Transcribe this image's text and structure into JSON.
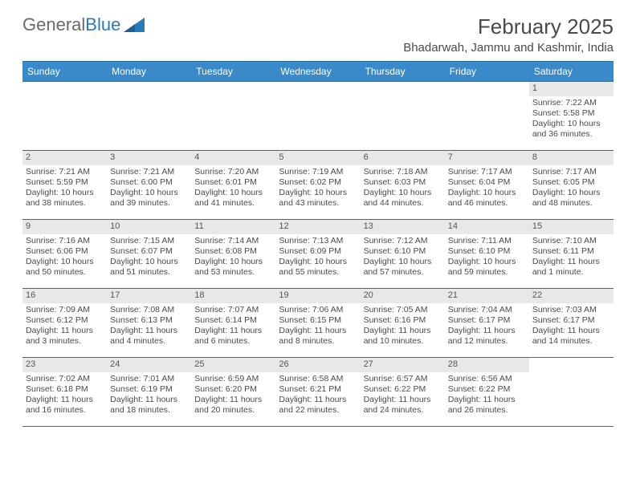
{
  "branding": {
    "logo_text_1": "General",
    "logo_text_2": "Blue",
    "logo_color_gray": "#6a6a6a",
    "logo_color_blue": "#2a7ab8"
  },
  "header": {
    "month_title": "February 2025",
    "location": "Bhadarwah, Jammu and Kashmir, India"
  },
  "colors": {
    "header_row_bg": "#3a89c9",
    "header_row_text": "#ffffff",
    "cell_border": "#2a6ea3",
    "daynum_bg": "#e8e8e8",
    "body_text": "#4a4a4a",
    "page_bg": "#ffffff"
  },
  "typography": {
    "title_fontsize": 26,
    "location_fontsize": 15,
    "dayheader_fontsize": 12,
    "cell_fontsize": 10.5
  },
  "calendar": {
    "day_names": [
      "Sunday",
      "Monday",
      "Tuesday",
      "Wednesday",
      "Thursday",
      "Friday",
      "Saturday"
    ],
    "first_weekday_index": 6,
    "days": [
      {
        "n": "1",
        "sunrise": "Sunrise: 7:22 AM",
        "sunset": "Sunset: 5:58 PM",
        "daylight": "Daylight: 10 hours and 36 minutes."
      },
      {
        "n": "2",
        "sunrise": "Sunrise: 7:21 AM",
        "sunset": "Sunset: 5:59 PM",
        "daylight": "Daylight: 10 hours and 38 minutes."
      },
      {
        "n": "3",
        "sunrise": "Sunrise: 7:21 AM",
        "sunset": "Sunset: 6:00 PM",
        "daylight": "Daylight: 10 hours and 39 minutes."
      },
      {
        "n": "4",
        "sunrise": "Sunrise: 7:20 AM",
        "sunset": "Sunset: 6:01 PM",
        "daylight": "Daylight: 10 hours and 41 minutes."
      },
      {
        "n": "5",
        "sunrise": "Sunrise: 7:19 AM",
        "sunset": "Sunset: 6:02 PM",
        "daylight": "Daylight: 10 hours and 43 minutes."
      },
      {
        "n": "6",
        "sunrise": "Sunrise: 7:18 AM",
        "sunset": "Sunset: 6:03 PM",
        "daylight": "Daylight: 10 hours and 44 minutes."
      },
      {
        "n": "7",
        "sunrise": "Sunrise: 7:17 AM",
        "sunset": "Sunset: 6:04 PM",
        "daylight": "Daylight: 10 hours and 46 minutes."
      },
      {
        "n": "8",
        "sunrise": "Sunrise: 7:17 AM",
        "sunset": "Sunset: 6:05 PM",
        "daylight": "Daylight: 10 hours and 48 minutes."
      },
      {
        "n": "9",
        "sunrise": "Sunrise: 7:16 AM",
        "sunset": "Sunset: 6:06 PM",
        "daylight": "Daylight: 10 hours and 50 minutes."
      },
      {
        "n": "10",
        "sunrise": "Sunrise: 7:15 AM",
        "sunset": "Sunset: 6:07 PM",
        "daylight": "Daylight: 10 hours and 51 minutes."
      },
      {
        "n": "11",
        "sunrise": "Sunrise: 7:14 AM",
        "sunset": "Sunset: 6:08 PM",
        "daylight": "Daylight: 10 hours and 53 minutes."
      },
      {
        "n": "12",
        "sunrise": "Sunrise: 7:13 AM",
        "sunset": "Sunset: 6:09 PM",
        "daylight": "Daylight: 10 hours and 55 minutes."
      },
      {
        "n": "13",
        "sunrise": "Sunrise: 7:12 AM",
        "sunset": "Sunset: 6:10 PM",
        "daylight": "Daylight: 10 hours and 57 minutes."
      },
      {
        "n": "14",
        "sunrise": "Sunrise: 7:11 AM",
        "sunset": "Sunset: 6:10 PM",
        "daylight": "Daylight: 10 hours and 59 minutes."
      },
      {
        "n": "15",
        "sunrise": "Sunrise: 7:10 AM",
        "sunset": "Sunset: 6:11 PM",
        "daylight": "Daylight: 11 hours and 1 minute."
      },
      {
        "n": "16",
        "sunrise": "Sunrise: 7:09 AM",
        "sunset": "Sunset: 6:12 PM",
        "daylight": "Daylight: 11 hours and 3 minutes."
      },
      {
        "n": "17",
        "sunrise": "Sunrise: 7:08 AM",
        "sunset": "Sunset: 6:13 PM",
        "daylight": "Daylight: 11 hours and 4 minutes."
      },
      {
        "n": "18",
        "sunrise": "Sunrise: 7:07 AM",
        "sunset": "Sunset: 6:14 PM",
        "daylight": "Daylight: 11 hours and 6 minutes."
      },
      {
        "n": "19",
        "sunrise": "Sunrise: 7:06 AM",
        "sunset": "Sunset: 6:15 PM",
        "daylight": "Daylight: 11 hours and 8 minutes."
      },
      {
        "n": "20",
        "sunrise": "Sunrise: 7:05 AM",
        "sunset": "Sunset: 6:16 PM",
        "daylight": "Daylight: 11 hours and 10 minutes."
      },
      {
        "n": "21",
        "sunrise": "Sunrise: 7:04 AM",
        "sunset": "Sunset: 6:17 PM",
        "daylight": "Daylight: 11 hours and 12 minutes."
      },
      {
        "n": "22",
        "sunrise": "Sunrise: 7:03 AM",
        "sunset": "Sunset: 6:17 PM",
        "daylight": "Daylight: 11 hours and 14 minutes."
      },
      {
        "n": "23",
        "sunrise": "Sunrise: 7:02 AM",
        "sunset": "Sunset: 6:18 PM",
        "daylight": "Daylight: 11 hours and 16 minutes."
      },
      {
        "n": "24",
        "sunrise": "Sunrise: 7:01 AM",
        "sunset": "Sunset: 6:19 PM",
        "daylight": "Daylight: 11 hours and 18 minutes."
      },
      {
        "n": "25",
        "sunrise": "Sunrise: 6:59 AM",
        "sunset": "Sunset: 6:20 PM",
        "daylight": "Daylight: 11 hours and 20 minutes."
      },
      {
        "n": "26",
        "sunrise": "Sunrise: 6:58 AM",
        "sunset": "Sunset: 6:21 PM",
        "daylight": "Daylight: 11 hours and 22 minutes."
      },
      {
        "n": "27",
        "sunrise": "Sunrise: 6:57 AM",
        "sunset": "Sunset: 6:22 PM",
        "daylight": "Daylight: 11 hours and 24 minutes."
      },
      {
        "n": "28",
        "sunrise": "Sunrise: 6:56 AM",
        "sunset": "Sunset: 6:22 PM",
        "daylight": "Daylight: 11 hours and 26 minutes."
      }
    ]
  }
}
